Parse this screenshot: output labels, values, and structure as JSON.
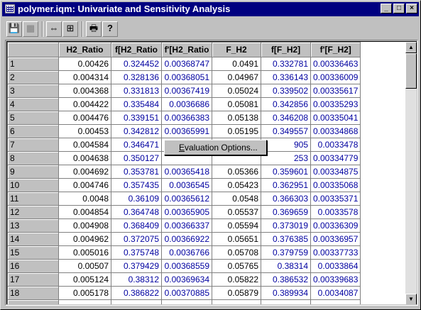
{
  "window": {
    "title": "polymer.iqm: Univariate and Sensitivity Analysis",
    "buttons": [
      "minimize",
      "maximize",
      "close"
    ]
  },
  "toolbar": {
    "tools": [
      {
        "name": "save-icon",
        "glyph": "💾"
      },
      {
        "name": "table-icon",
        "glyph": "▦"
      },
      {
        "name": "fit-columns-icon",
        "glyph": "⇔"
      },
      {
        "name": "fit-window-icon",
        "glyph": "⊞"
      },
      {
        "name": "print-icon",
        "glyph": "🖶"
      },
      {
        "name": "help-icon",
        "glyph": "?"
      }
    ]
  },
  "grid": {
    "columns": [
      "H2_Ratio",
      "f[H2_Ratio",
      "f'[H2_Ratio",
      "F_H2",
      "f[F_H2]",
      "f'[F_H2]"
    ],
    "rows": [
      [
        "1",
        "0.00426",
        "0.324452",
        "0.00368747",
        "0.0491",
        "0.332781",
        "0.00336463"
      ],
      [
        "2",
        "0.004314",
        "0.328136",
        "0.00368051",
        "0.04967",
        "0.336143",
        "0.00336009"
      ],
      [
        "3",
        "0.004368",
        "0.331813",
        "0.00367419",
        "0.05024",
        "0.339502",
        "0.00335617"
      ],
      [
        "4",
        "0.004422",
        "0.335484",
        "0.0036686",
        "0.05081",
        "0.342856",
        "0.00335293"
      ],
      [
        "5",
        "0.004476",
        "0.339151",
        "0.00366383",
        "0.05138",
        "0.346208",
        "0.00335041"
      ],
      [
        "6",
        "0.00453",
        "0.342812",
        "0.00365991",
        "0.05195",
        "0.349557",
        "0.00334868"
      ],
      [
        "7",
        "0.004584",
        "0.346471",
        "0.",
        "",
        "905",
        "0.0033478"
      ],
      [
        "8",
        "0.004638",
        "0.350127",
        "",
        "",
        "253",
        "0.00334779"
      ],
      [
        "9",
        "0.004692",
        "0.353781",
        "0.00365418",
        "0.05366",
        "0.359601",
        "0.00334875"
      ],
      [
        "10",
        "0.004746",
        "0.357435",
        "0.0036545",
        "0.05423",
        "0.362951",
        "0.00335068"
      ],
      [
        "11",
        "0.0048",
        "0.36109",
        "0.00365612",
        "0.0548",
        "0.366303",
        "0.00335371"
      ],
      [
        "12",
        "0.004854",
        "0.364748",
        "0.00365905",
        "0.05537",
        "0.369659",
        "0.0033578"
      ],
      [
        "13",
        "0.004908",
        "0.368409",
        "0.00366337",
        "0.05594",
        "0.373019",
        "0.00336309"
      ],
      [
        "14",
        "0.004962",
        "0.372075",
        "0.00366922",
        "0.05651",
        "0.376385",
        "0.00336957"
      ],
      [
        "15",
        "0.005016",
        "0.375748",
        "0.0036766",
        "0.05708",
        "0.379759",
        "0.00337733"
      ],
      [
        "16",
        "0.00507",
        "0.379429",
        "0.00368559",
        "0.05765",
        "0.38314",
        "0.0033864"
      ],
      [
        "17",
        "0.005124",
        "0.38312",
        "0.00369634",
        "0.05822",
        "0.386532",
        "0.00339683"
      ],
      [
        "18",
        "0.005178",
        "0.386822",
        "0.00370885",
        "0.05879",
        "0.389934",
        "0.0034087"
      ]
    ]
  },
  "context_menu": {
    "item_label_underlined": "E",
    "item_label_rest": "valuation Options..."
  },
  "colors": {
    "titlebar": "#000080",
    "derivative_text": "#0000a0"
  }
}
